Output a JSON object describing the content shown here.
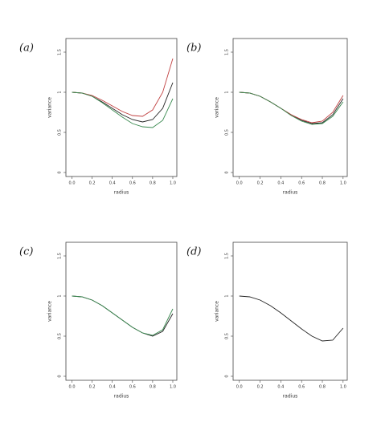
{
  "chart_data": [
    {
      "type": "line",
      "panel_label": "(a)",
      "xlabel": "radius",
      "ylabel": "variance",
      "x": [
        0,
        0.1,
        0.2,
        0.3,
        0.4,
        0.5,
        0.6,
        0.7,
        0.8,
        0.9,
        1.0
      ],
      "series": [
        {
          "color": "#222222",
          "values": [
            1.0,
            0.99,
            0.95,
            0.88,
            0.8,
            0.72,
            0.66,
            0.63,
            0.66,
            0.8,
            1.12
          ]
        },
        {
          "color": "#c04040",
          "values": [
            1.0,
            0.99,
            0.96,
            0.9,
            0.83,
            0.76,
            0.71,
            0.7,
            0.78,
            1.0,
            1.42
          ]
        },
        {
          "color": "#3a8a50",
          "values": [
            1.0,
            0.99,
            0.95,
            0.87,
            0.78,
            0.69,
            0.61,
            0.57,
            0.56,
            0.65,
            0.92
          ]
        }
      ],
      "xlim": [
        -0.06,
        1.04
      ],
      "ylim": [
        -0.05,
        1.67
      ],
      "xticks": [
        {
          "value": 0,
          "label": "0.0"
        },
        0.2,
        0.4,
        0.6,
        0.8,
        {
          "value": 1,
          "label": "1.0"
        }
      ],
      "yticks": [
        0,
        0.5,
        1,
        1.5
      ]
    },
    {
      "type": "line",
      "panel_label": "(b)",
      "xlabel": "radius",
      "ylabel": "variance",
      "x": [
        0,
        0.1,
        0.2,
        0.3,
        0.4,
        0.5,
        0.6,
        0.7,
        0.8,
        0.9,
        1.0
      ],
      "series": [
        {
          "color": "#222222",
          "values": [
            1.0,
            0.99,
            0.95,
            0.88,
            0.8,
            0.72,
            0.65,
            0.61,
            0.62,
            0.72,
            0.92
          ]
        },
        {
          "color": "#c04040",
          "values": [
            1.0,
            0.99,
            0.95,
            0.88,
            0.8,
            0.72,
            0.66,
            0.62,
            0.64,
            0.75,
            0.96
          ]
        },
        {
          "color": "#3a8a50",
          "values": [
            1.0,
            0.99,
            0.95,
            0.88,
            0.8,
            0.71,
            0.64,
            0.6,
            0.61,
            0.7,
            0.88
          ]
        }
      ],
      "xlim": [
        -0.06,
        1.04
      ],
      "ylim": [
        -0.05,
        1.67
      ],
      "xticks": [
        {
          "value": 0,
          "label": "0.0"
        },
        0.2,
        0.4,
        0.6,
        0.8,
        {
          "value": 1,
          "label": "1.0"
        }
      ],
      "yticks": [
        0,
        0.5,
        1,
        1.5
      ]
    },
    {
      "type": "line",
      "panel_label": "(c)",
      "xlabel": "radius",
      "ylabel": "variance",
      "x": [
        0,
        0.1,
        0.2,
        0.3,
        0.4,
        0.5,
        0.6,
        0.7,
        0.8,
        0.9,
        1.0
      ],
      "series": [
        {
          "color": "#222222",
          "values": [
            1.0,
            0.99,
            0.95,
            0.88,
            0.79,
            0.7,
            0.61,
            0.54,
            0.5,
            0.56,
            0.78
          ]
        },
        {
          "color": "#3a8a50",
          "values": [
            1.0,
            0.99,
            0.95,
            0.88,
            0.79,
            0.7,
            0.61,
            0.54,
            0.51,
            0.58,
            0.84
          ]
        }
      ],
      "xlim": [
        -0.06,
        1.04
      ],
      "ylim": [
        -0.05,
        1.67
      ],
      "xticks": [
        {
          "value": 0,
          "label": "0.0"
        },
        0.2,
        0.4,
        0.6,
        0.8,
        {
          "value": 1,
          "label": "1.0"
        }
      ],
      "yticks": [
        0,
        0.5,
        1,
        1.5
      ]
    },
    {
      "type": "line",
      "panel_label": "(d)",
      "xlabel": "radius",
      "ylabel": "variance",
      "x": [
        0,
        0.1,
        0.2,
        0.3,
        0.4,
        0.5,
        0.6,
        0.7,
        0.8,
        0.9,
        1.0
      ],
      "series": [
        {
          "color": "#222222",
          "values": [
            1.0,
            0.99,
            0.95,
            0.88,
            0.79,
            0.69,
            0.59,
            0.5,
            0.44,
            0.45,
            0.6
          ]
        }
      ],
      "xlim": [
        -0.06,
        1.04
      ],
      "ylim": [
        -0.05,
        1.67
      ],
      "xticks": [
        {
          "value": 0,
          "label": "0.0"
        },
        0.2,
        0.4,
        0.6,
        0.8,
        {
          "value": 1,
          "label": "1.0"
        }
      ],
      "yticks": [
        0,
        0.5,
        1,
        1.5
      ]
    }
  ]
}
